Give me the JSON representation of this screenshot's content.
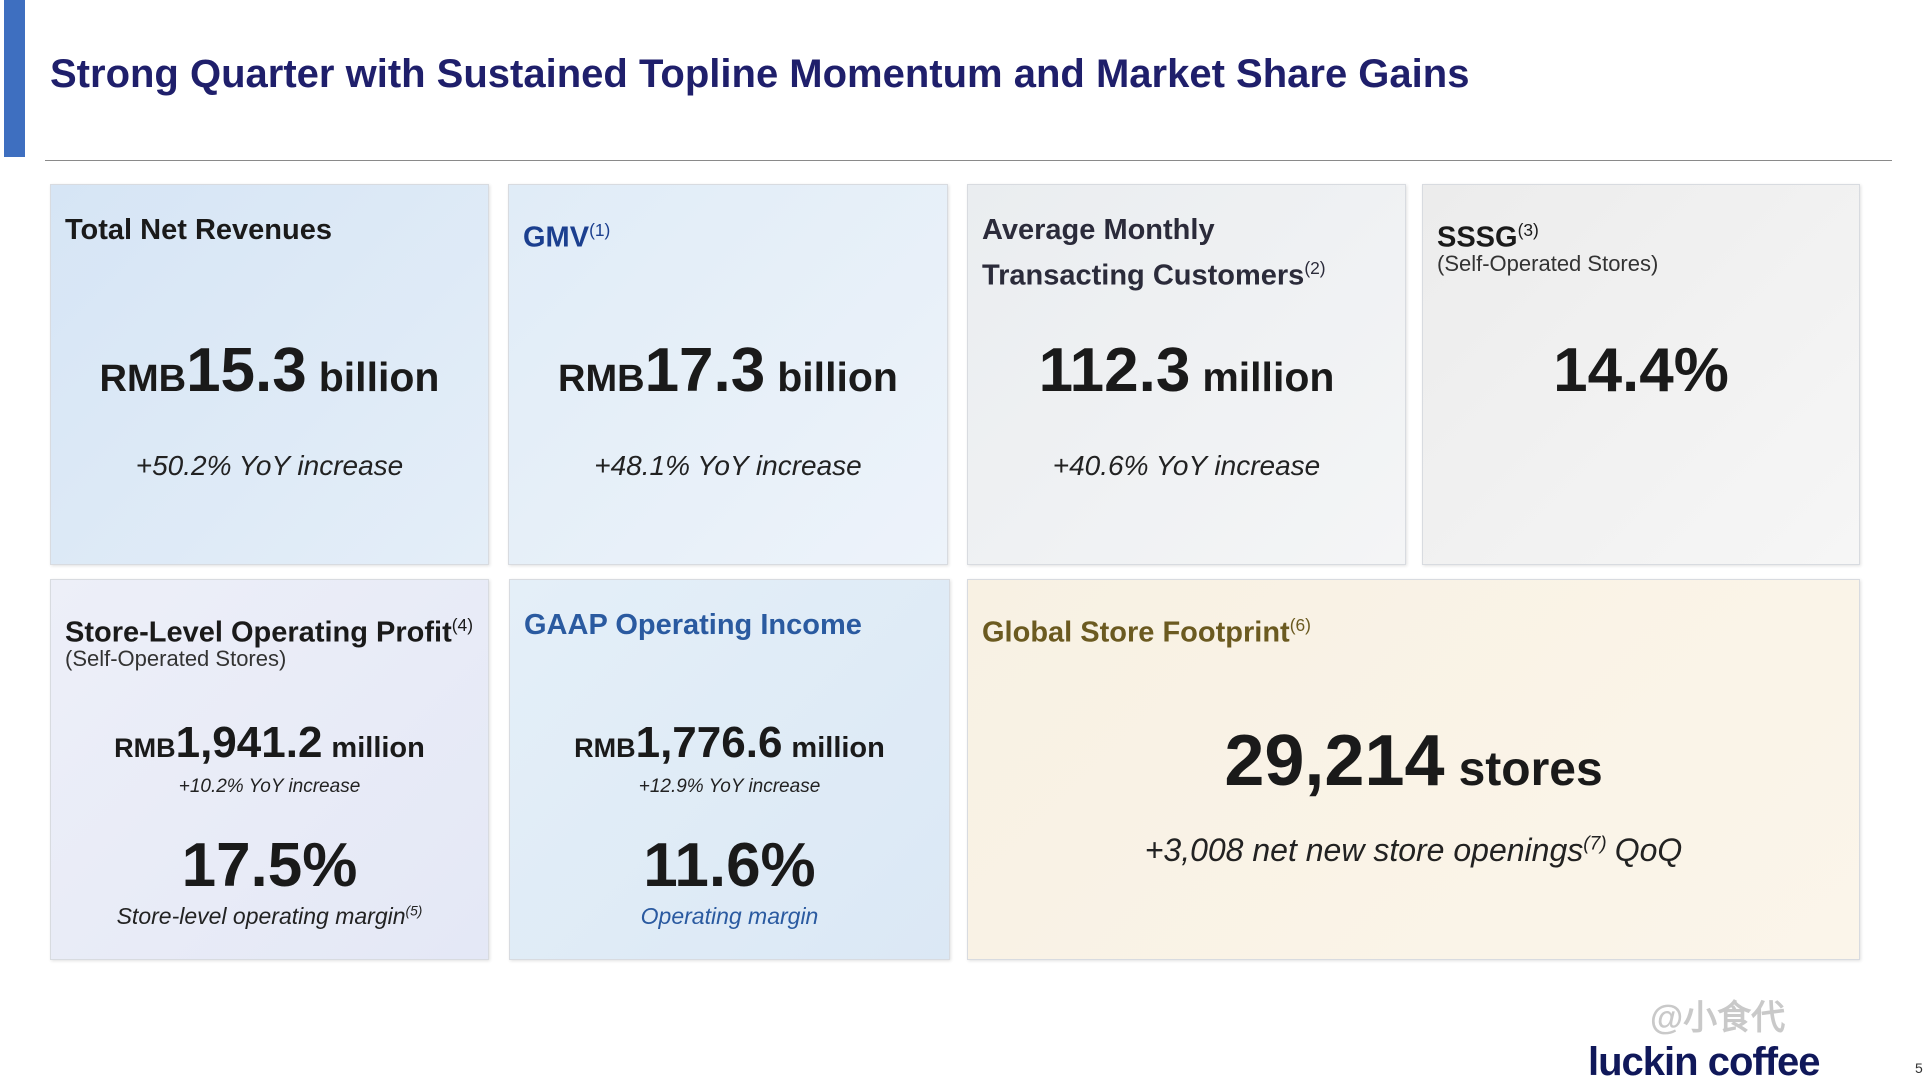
{
  "header": {
    "title": "Strong Quarter with Sustained Topline Momentum and Market Share Gains"
  },
  "cards": [
    {
      "title": "Total Net Revenues",
      "value_prefix": "RMB",
      "value": "15.3",
      "value_unit": "billion",
      "change": "+50.2% YoY increase"
    },
    {
      "title": "GMV",
      "title_note": "(1)",
      "value_prefix": "RMB",
      "value": "17.3",
      "value_unit": "billion",
      "change": "+48.1% YoY increase"
    },
    {
      "title": "Average Monthly Transacting Customers",
      "title_note": "(2)",
      "value": "112.3",
      "value_unit": "million",
      "change": "+40.6% YoY increase"
    },
    {
      "title": "SSSG",
      "title_note": "(3)",
      "subtitle": "(Self-Operated Stores)",
      "value": "14.4%"
    },
    {
      "title": "Store-Level Operating Profit",
      "title_note": "(4)",
      "subtitle": "(Self-Operated Stores)",
      "value_prefix": "RMB",
      "value": "1,941.2",
      "value_unit": "million",
      "change": "+10.2% YoY increase",
      "margin": "17.5%",
      "margin_label": "Store-level operating margin",
      "margin_note": "(5)"
    },
    {
      "title": "GAAP Operating Income",
      "value_prefix": "RMB",
      "value": "1,776.6",
      "value_unit": "million",
      "change": "+12.9% YoY increase",
      "margin": "11.6%",
      "margin_label": "Operating margin"
    },
    {
      "title": "Global Store Footprint",
      "title_note": "(6)",
      "value": "29,214",
      "value_unit": "stores",
      "change": "+3,008 net new store openings",
      "change_note": "(7)",
      "change_suffix": "QoQ"
    }
  ],
  "footer": {
    "logo": "luckin coffee",
    "watermark": "@小食代",
    "page_number": "5"
  }
}
